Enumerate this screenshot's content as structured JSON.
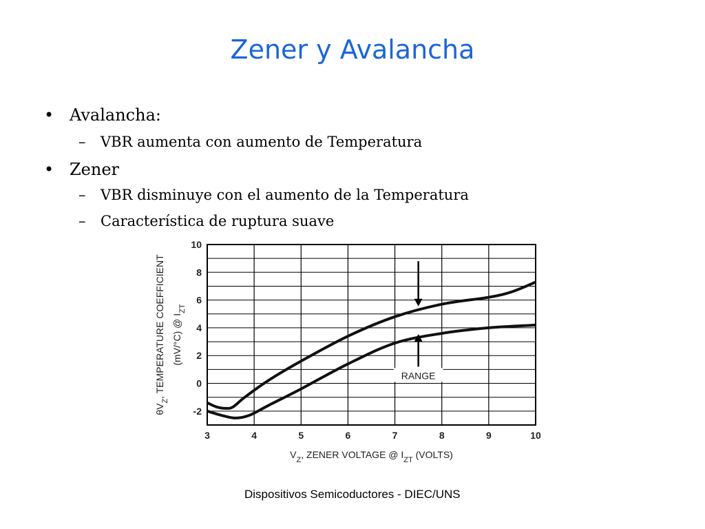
{
  "slide": {
    "title": "Zener y Avalancha",
    "footer": "Dispositivos Semicoductores - DIEC/UNS",
    "bullets": [
      {
        "text": "Avalancha:",
        "sub": [
          "VBR aumenta con aumento de Temperatura"
        ]
      },
      {
        "text": "Zener",
        "sub": [
          "VBR disminuye con el aumento de la Temperatura",
          "Característica de ruptura suave"
        ]
      }
    ],
    "bullet_marker": "•",
    "sub_marker": "–"
  },
  "chart_data": {
    "type": "line",
    "xlabel_parts": [
      "V",
      "Z",
      ", ZENER VOLTAGE @ I",
      "ZT",
      " (VOLTS)"
    ],
    "ylabel_parts": [
      "θV",
      "Z",
      ", TEMPERATURE COEFFICIENT"
    ],
    "ylabel2_parts": [
      "(mV/°C) @ I",
      "ZT"
    ],
    "xlim": [
      3,
      10
    ],
    "ylim": [
      -3,
      10
    ],
    "xticks": [
      3,
      4,
      5,
      6,
      7,
      8,
      9,
      10
    ],
    "yticks": [
      10,
      8,
      6,
      4,
      2,
      0,
      -2
    ],
    "grid": true,
    "series": [
      {
        "x": [
          3,
          3.2,
          3.4,
          3.55,
          3.8,
          4.3,
          5,
          6,
          7,
          8,
          9,
          9.5,
          10
        ],
        "y": [
          -1.4,
          -1.7,
          -1.8,
          -1.7,
          -1.0,
          0.2,
          1.6,
          3.4,
          4.8,
          5.7,
          6.2,
          6.6,
          7.3
        ]
      },
      {
        "x": [
          3,
          3.3,
          3.6,
          3.9,
          4.3,
          5,
          6,
          7,
          8,
          9,
          10
        ],
        "y": [
          -2.0,
          -2.3,
          -2.5,
          -2.3,
          -1.6,
          -0.4,
          1.4,
          2.9,
          3.6,
          4.0,
          4.2
        ]
      }
    ],
    "annotation": {
      "label": "RANGE",
      "x": 7.5,
      "y_top": 5.5,
      "y_bottom": 3.6
    }
  }
}
